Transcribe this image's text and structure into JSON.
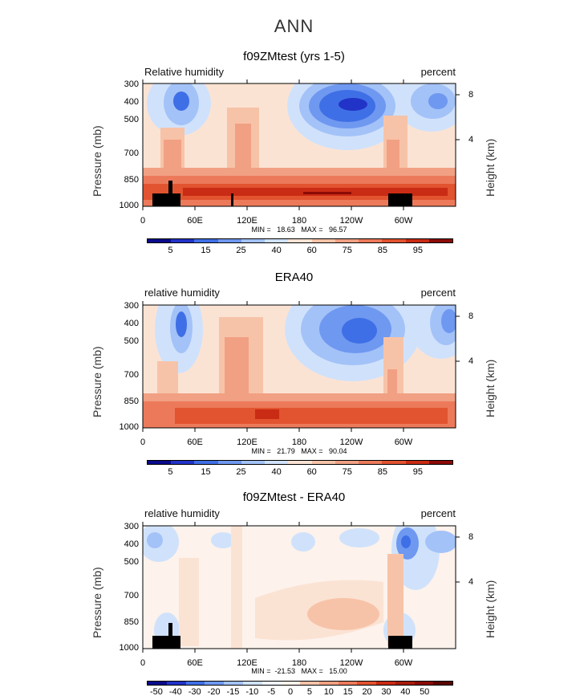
{
  "main_title": "ANN",
  "panels": [
    {
      "title": "f09ZMtest (yrs 1-5)",
      "label_left": "Relative humidity",
      "label_right": "percent",
      "minmax": "MIN =   18.63   MAX =   96.57",
      "colorbar_labels": [
        "5",
        "15",
        "25",
        "40",
        "60",
        "75",
        "85",
        "95"
      ]
    },
    {
      "title": "ERA40",
      "label_left": "relative humidity",
      "label_right": "percent",
      "minmax": "MIN =   21.79   MAX =   90.04",
      "colorbar_labels": [
        "5",
        "15",
        "25",
        "40",
        "60",
        "75",
        "85",
        "95"
      ]
    },
    {
      "title": "f09ZMtest - ERA40",
      "label_left": "relative humidity",
      "label_right": "percent",
      "minmax": "MIN =  -21.53   MAX =   15.00",
      "colorbar_labels": [
        "-50",
        "-40",
        "-30",
        "-20",
        "-15",
        "-10",
        "-5",
        "0",
        "5",
        "10",
        "15",
        "20",
        "30",
        "40",
        "50"
      ]
    }
  ],
  "axes": {
    "ylabel": "Pressure (mb)",
    "y2label": "Height (km)",
    "yticks": [
      "300",
      "400",
      "500",
      "700",
      "850",
      "1000"
    ],
    "xticks": [
      "0",
      "60E",
      "120E",
      "180",
      "120W",
      "60W"
    ],
    "y2ticks": [
      "8",
      "4"
    ]
  },
  "colors": {
    "abs_scale": [
      "#0a0a8c",
      "#2233c8",
      "#3f6fe6",
      "#6f98f0",
      "#a3c2f8",
      "#d0e2fb",
      "#fbe3d4",
      "#f7c3a8",
      "#f1a083",
      "#ec7a5a",
      "#e2532f",
      "#c92b14",
      "#8c0a06"
    ],
    "diff_scale": [
      "#0a0a8c",
      "#2233c8",
      "#3f6fe6",
      "#6f98f0",
      "#a3c2f8",
      "#d0e2fb",
      "#eef3fc",
      "#fdf2ec",
      "#f7c3a8",
      "#f1a083",
      "#ec7a5a",
      "#e2532f",
      "#c92b14",
      "#a81c0c",
      "#8c0a06",
      "#5c0503"
    ]
  },
  "chart_data": [
    {
      "type": "heatmap",
      "title": "f09ZMtest (yrs 1-5)",
      "xlabel": "",
      "ylabel": "Pressure (mb)",
      "x": [
        "0",
        "60E",
        "120E",
        "180",
        "120W",
        "60W"
      ],
      "y": [
        300,
        400,
        500,
        700,
        850,
        1000
      ],
      "value_range": [
        18.63,
        96.57
      ],
      "levels": [
        5,
        10,
        15,
        20,
        25,
        30,
        40,
        50,
        60,
        70,
        75,
        80,
        85,
        90,
        95
      ]
    },
    {
      "type": "heatmap",
      "title": "ERA40",
      "xlabel": "",
      "ylabel": "Pressure (mb)",
      "x": [
        "0",
        "60E",
        "120E",
        "180",
        "120W",
        "60W"
      ],
      "y": [
        300,
        400,
        500,
        700,
        850,
        1000
      ],
      "value_range": [
        21.79,
        90.04
      ],
      "levels": [
        5,
        10,
        15,
        20,
        25,
        30,
        40,
        50,
        60,
        70,
        75,
        80,
        85,
        90,
        95
      ]
    },
    {
      "type": "heatmap",
      "title": "f09ZMtest - ERA40",
      "xlabel": "",
      "ylabel": "Pressure (mb)",
      "x": [
        "0",
        "60E",
        "120E",
        "180",
        "120W",
        "60W"
      ],
      "y": [
        300,
        400,
        500,
        700,
        850,
        1000
      ],
      "value_range": [
        -21.53,
        15.0
      ],
      "levels": [
        -50,
        -40,
        -30,
        -20,
        -15,
        -10,
        -5,
        0,
        5,
        10,
        15,
        20,
        30,
        40,
        50
      ]
    }
  ]
}
